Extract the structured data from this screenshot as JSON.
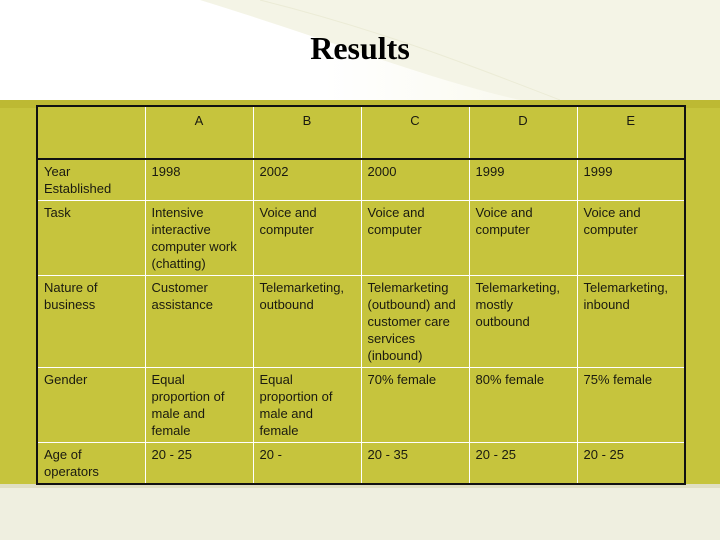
{
  "title": "Results",
  "table": {
    "columns": [
      "",
      "A",
      "B",
      "C",
      "D",
      "E"
    ],
    "rows": [
      {
        "label": "Year Established",
        "cells": [
          "1998",
          "2002",
          "2000",
          "1999",
          "1999"
        ]
      },
      {
        "label": "Task",
        "cells": [
          "Intensive interactive computer work (chatting)",
          "Voice and computer",
          "Voice and computer",
          "Voice and computer",
          "Voice and computer"
        ]
      },
      {
        "label": "Nature of business",
        "cells": [
          "Customer assistance",
          "Telemarketing, outbound",
          "Telemarketing (outbound) and customer care services (inbound)",
          "Telemarketing, mostly outbound",
          "Telemarketing, inbound"
        ]
      },
      {
        "label": "Gender",
        "cells": [
          "Equal proportion of male and female",
          "Equal proportion of male and female",
          "70% female",
          "80% female",
          "75% female"
        ]
      },
      {
        "label": "Age of operators",
        "cells": [
          "20 - 25",
          "20 -",
          "20 - 35",
          "20 - 25",
          "20 - 25"
        ]
      }
    ]
  },
  "colors": {
    "band": "#c6c43d",
    "background": "#ffffff",
    "grid": "#ffffff"
  }
}
